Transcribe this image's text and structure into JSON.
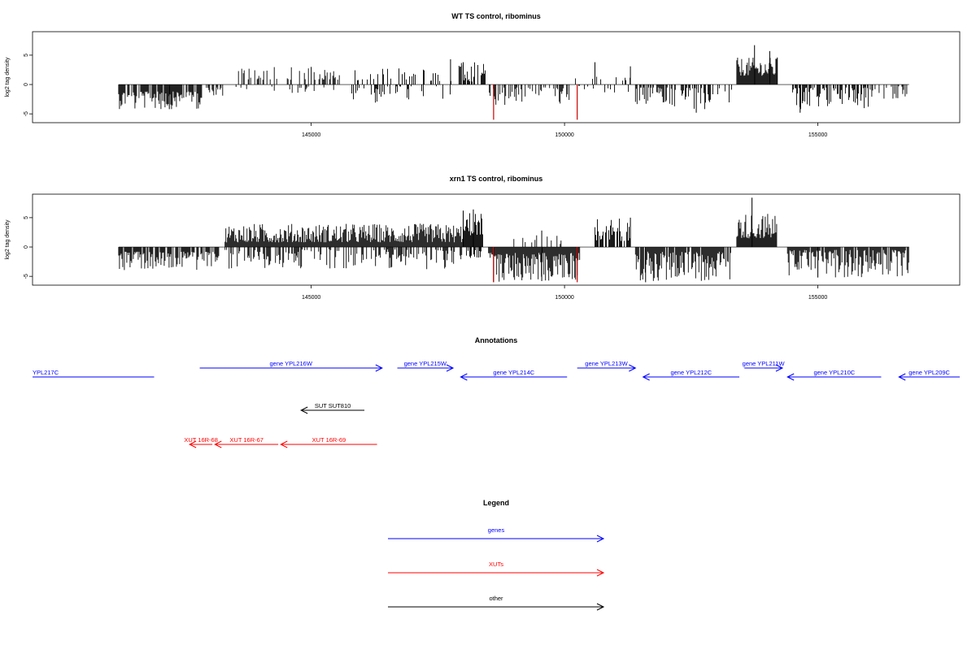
{
  "chart_data": [
    {
      "type": "bar",
      "title": "WT TS control, ribominus",
      "ylabel": "log2 tag density",
      "xlim": [
        139500,
        157800
      ],
      "ylim": [
        -6.5,
        9
      ],
      "xticks": [
        145000,
        150000,
        155000
      ],
      "yticks": [
        -5,
        0,
        5
      ],
      "highlight_color": "#cc0000",
      "bar_color": "#000000",
      "segments": [
        {
          "start": 141200,
          "end": 142850,
          "sign": -1,
          "min": 1.2,
          "max": 4.2,
          "density": 0.8
        },
        {
          "start": 142900,
          "end": 143300,
          "sign": -1,
          "min": 0.5,
          "max": 2.0,
          "density": 0.5
        },
        {
          "start": 143500,
          "end": 145600,
          "sign": 1,
          "min": 0.8,
          "max": 3.0,
          "density": 0.35
        },
        {
          "start": 143500,
          "end": 145600,
          "sign": -1,
          "min": 0.3,
          "max": 1.5,
          "density": 0.12
        },
        {
          "start": 145800,
          "end": 147800,
          "sign": 1,
          "min": 0.6,
          "max": 2.8,
          "density": 0.3
        },
        {
          "start": 145800,
          "end": 147800,
          "sign": -1,
          "min": 0.3,
          "max": 3.5,
          "density": 0.18
        },
        {
          "start": 147900,
          "end": 148000,
          "sign": 1,
          "min": 3.0,
          "max": 4.3,
          "density": 0.9
        },
        {
          "start": 148000,
          "end": 148450,
          "sign": 1,
          "min": 0.5,
          "max": 3.8,
          "density": 0.7
        },
        {
          "start": 148500,
          "end": 150100,
          "sign": -1,
          "min": 0.5,
          "max": 3.6,
          "density": 0.5
        },
        {
          "start": 150200,
          "end": 151300,
          "sign": 1,
          "min": 0.4,
          "max": 2.5,
          "density": 0.15
        },
        {
          "start": 150200,
          "end": 151300,
          "sign": -1,
          "min": 0.2,
          "max": 1.5,
          "density": 0.1
        },
        {
          "start": 151400,
          "end": 152300,
          "sign": -1,
          "min": 0.5,
          "max": 3.8,
          "density": 0.6
        },
        {
          "start": 152300,
          "end": 153300,
          "sign": -1,
          "min": 0.5,
          "max": 4.2,
          "density": 0.5
        },
        {
          "start": 153400,
          "end": 154200,
          "sign": 1,
          "min": 1.5,
          "max": 4.6,
          "density": 1.0
        },
        {
          "start": 154500,
          "end": 156000,
          "sign": -1,
          "min": 0.5,
          "max": 4.3,
          "density": 0.7
        },
        {
          "start": 156000,
          "end": 156800,
          "sign": -1,
          "min": 0.3,
          "max": 2.5,
          "density": 0.35
        }
      ],
      "peaks": [
        {
          "x": 153750,
          "y": 6.7
        },
        {
          "x": 154050,
          "y": 5.7
        },
        {
          "x": 154200,
          "y": 4.6
        },
        {
          "x": 150600,
          "y": 3.8
        },
        {
          "x": 151300,
          "y": 3.1
        },
        {
          "x": 147750,
          "y": 4.3
        },
        {
          "x": 148000,
          "y": 3.8
        },
        {
          "x": 145000,
          "y": 3.0
        },
        {
          "x": 154650,
          "y": -4.8
        },
        {
          "x": 152600,
          "y": -4.8
        },
        {
          "x": 142200,
          "y": -4.2
        }
      ],
      "highlights": [
        {
          "x": 148600,
          "y": -6.0
        },
        {
          "x": 150250,
          "y": -6.0
        }
      ]
    },
    {
      "type": "bar",
      "title": "xrn1 TS control, ribominus",
      "ylabel": "log2 tag density",
      "xlim": [
        139500,
        157800
      ],
      "ylim": [
        -6.5,
        9
      ],
      "xticks": [
        145000,
        150000,
        155000
      ],
      "yticks": [
        -5,
        0,
        5
      ],
      "highlight_color": "#cc0000",
      "bar_color": "#000000",
      "segments": [
        {
          "start": 141200,
          "end": 143200,
          "sign": -1,
          "min": 0.8,
          "max": 4.0,
          "density": 0.8
        },
        {
          "start": 143300,
          "end": 148000,
          "sign": 1,
          "min": 0.8,
          "max": 4.0,
          "density": 1.0
        },
        {
          "start": 143300,
          "end": 148000,
          "sign": -1,
          "min": 0.4,
          "max": 3.8,
          "density": 0.5
        },
        {
          "start": 148000,
          "end": 148400,
          "sign": 1,
          "min": 2.0,
          "max": 6.2,
          "density": 1.0
        },
        {
          "start": 148000,
          "end": 148400,
          "sign": -1,
          "min": 0.5,
          "max": 2.0,
          "density": 0.4
        },
        {
          "start": 148500,
          "end": 150300,
          "sign": -1,
          "min": 1.0,
          "max": 6.0,
          "density": 1.2
        },
        {
          "start": 149000,
          "end": 150000,
          "sign": 1,
          "min": 0.5,
          "max": 2.5,
          "density": 0.15
        },
        {
          "start": 150600,
          "end": 151300,
          "sign": 1,
          "min": 1.0,
          "max": 5.0,
          "density": 0.8
        },
        {
          "start": 151400,
          "end": 153300,
          "sign": -1,
          "min": 0.8,
          "max": 5.8,
          "density": 0.9
        },
        {
          "start": 153400,
          "end": 154200,
          "sign": 1,
          "min": 1.5,
          "max": 5.8,
          "density": 1.0
        },
        {
          "start": 154400,
          "end": 156800,
          "sign": -1,
          "min": 0.5,
          "max": 5.2,
          "density": 0.9
        }
      ],
      "peaks": [
        {
          "x": 153700,
          "y": 8.4
        },
        {
          "x": 148200,
          "y": 6.4
        },
        {
          "x": 148000,
          "y": 6.2
        },
        {
          "x": 151300,
          "y": 5.0
        },
        {
          "x": 149550,
          "y": 2.8
        },
        {
          "x": 149550,
          "y": -5.8
        },
        {
          "x": 151600,
          "y": -6.0
        },
        {
          "x": 155000,
          "y": -5.2
        }
      ],
      "highlights": [
        {
          "x": 148600,
          "y": -6.0
        },
        {
          "x": 150250,
          "y": -6.0
        }
      ]
    }
  ],
  "annotations": {
    "title": "Annotations",
    "xlim": [
      139500,
      157800
    ],
    "features": [
      {
        "label": "YPL217C",
        "start": 139500,
        "end": 141900,
        "strand": "-",
        "class": "gene",
        "row": 1,
        "label_at": "left"
      },
      {
        "label": "gene YPL216W",
        "start": 142800,
        "end": 146400,
        "strand": "+",
        "class": "gene",
        "row": 0
      },
      {
        "label": "gene YPL215W",
        "start": 146700,
        "end": 147800,
        "strand": "+",
        "class": "gene",
        "row": 0
      },
      {
        "label": "gene YPL214C",
        "start": 147950,
        "end": 150050,
        "strand": "-",
        "class": "gene",
        "row": 1
      },
      {
        "label": "gene YPL213W",
        "start": 150250,
        "end": 151400,
        "strand": "+",
        "class": "gene",
        "row": 0
      },
      {
        "label": "gene YPL212C",
        "start": 151550,
        "end": 153450,
        "strand": "-",
        "class": "gene",
        "row": 1
      },
      {
        "label": "gene YPL211W",
        "start": 153550,
        "end": 154300,
        "strand": "+",
        "class": "gene",
        "row": 0
      },
      {
        "label": "gene YPL210C",
        "start": 154400,
        "end": 156250,
        "strand": "-",
        "class": "gene",
        "row": 1
      },
      {
        "label": "gene YPL209C",
        "start": 156600,
        "end": 157800,
        "strand": "-",
        "class": "gene",
        "row": 1
      },
      {
        "label": "SUT SUT810",
        "start": 144800,
        "end": 146050,
        "strand": "-",
        "class": "other",
        "row": 2
      },
      {
        "label": "XUT 16R-68",
        "start": 142600,
        "end": 143050,
        "strand": "-",
        "class": "xut",
        "row": 3
      },
      {
        "label": "XUT 16R-67",
        "start": 143100,
        "end": 144350,
        "strand": "-",
        "class": "xut",
        "row": 3
      },
      {
        "label": "XUT 16R-69",
        "start": 144400,
        "end": 146300,
        "strand": "-",
        "class": "xut",
        "row": 3
      }
    ]
  },
  "legend": {
    "title": "Legend",
    "items": [
      {
        "label": "genes",
        "color": "#0000ff"
      },
      {
        "label": "XUTs",
        "color": "#ff0000"
      },
      {
        "label": "other",
        "color": "#000000"
      }
    ]
  },
  "colors": {
    "gene": "#0000ff",
    "xut": "#ff0000",
    "other": "#000000",
    "axis": "#000000"
  }
}
